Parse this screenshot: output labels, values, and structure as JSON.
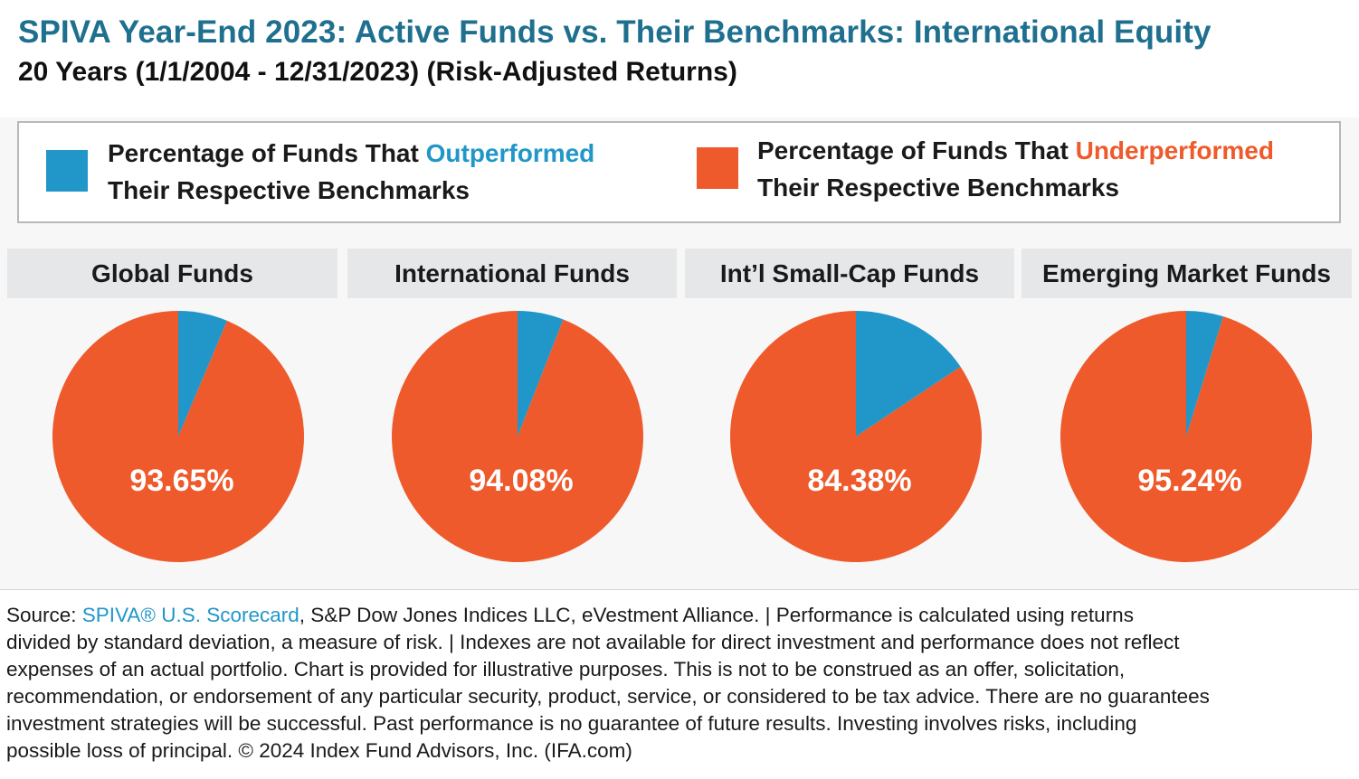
{
  "title": "SPIVA Year-End 2023: Active Funds vs. Their Benchmarks: International Equity",
  "subtitle": "20 Years (1/1/2004 - 12/31/2023) (Risk-Adjusted Returns)",
  "legend": {
    "outperformed": {
      "prefix": "Percentage of Funds That ",
      "highlight": "Outperformed",
      "line2": "Their Respective Benchmarks",
      "color": "#2196c9"
    },
    "underperformed": {
      "prefix": "Percentage of Funds That ",
      "highlight": "Underperformed",
      "line2": "Their Respective Benchmarks",
      "color": "#ee5a2b"
    }
  },
  "chart_data": [
    {
      "type": "pie",
      "title": "Global Funds",
      "slices": [
        {
          "name": "Outperformed",
          "value": 6.35
        },
        {
          "name": "Underperformed",
          "value": 93.65
        }
      ],
      "label": "93.65%"
    },
    {
      "type": "pie",
      "title": "International Funds",
      "slices": [
        {
          "name": "Outperformed",
          "value": 5.92
        },
        {
          "name": "Underperformed",
          "value": 94.08
        }
      ],
      "label": "94.08%"
    },
    {
      "type": "pie",
      "title": "Int’l Small-Cap Funds",
      "slices": [
        {
          "name": "Outperformed",
          "value": 15.62
        },
        {
          "name": "Underperformed",
          "value": 84.38
        }
      ],
      "label": "84.38%"
    },
    {
      "type": "pie",
      "title": "Emerging Market Funds",
      "slices": [
        {
          "name": "Outperformed",
          "value": 4.76
        },
        {
          "name": "Underperformed",
          "value": 95.24
        }
      ],
      "label": "95.24%"
    }
  ],
  "footer": {
    "source_label": "Source: ",
    "source_link": "SPIVA® U.S. Scorecard",
    "line1_rest": ", S&P Dow Jones Indices LLC, eVestment Alliance. | Performance is calculated using returns",
    "line2": "divided by standard deviation, a measure of risk. | Indexes are not available for direct investment and performance does not reflect",
    "line3": "expenses of an actual portfolio. Chart is provided for illustrative purposes. This is not to be construed as an offer, solicitation,",
    "line4": "recommendation, or endorsement of any particular security, product, service, or considered to be tax advice. There are no guarantees",
    "line5": "investment strategies will be successful. Past performance is no guarantee of future results. Investing involves risks, including",
    "line6": "possible loss of principal. © 2024 Index Fund Advisors, Inc. (IFA.com)"
  }
}
